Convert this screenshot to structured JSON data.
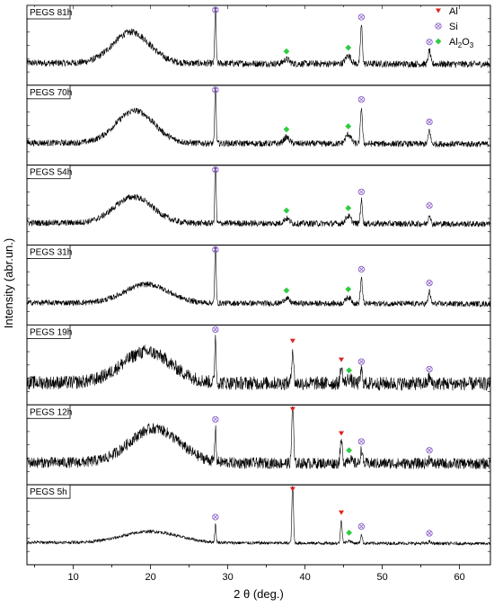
{
  "chart_data": {
    "type": "line",
    "xlabel": "2 θ (deg.)",
    "ylabel": "Intensity (abr.un.)",
    "xlim": [
      4,
      64
    ],
    "x_ticks": [
      10,
      20,
      30,
      40,
      50,
      60
    ],
    "grid": false,
    "legend_position": "top-right",
    "legend": [
      {
        "name": "Al",
        "symbol": "triangle-down",
        "color": "#e02020"
      },
      {
        "name": "Si",
        "symbol": "circle-x",
        "color": "#8a5ec9"
      },
      {
        "name": "Al",
        "subscript_a": "2",
        "name_b": "O",
        "subscript_b": "3",
        "symbol": "diamond",
        "color": "#2ecc40"
      }
    ],
    "series": [
      {
        "name": "PEGS 81h",
        "noise": 0.11,
        "hump": {
          "center": 17.5,
          "width": 3.4,
          "height": 0.5
        },
        "peaks": [
          {
            "x": 28.4,
            "h": 1.0,
            "w": 0.12
          },
          {
            "x": 37.6,
            "h": 0.07,
            "w": 0.5
          },
          {
            "x": 45.6,
            "h": 0.13,
            "w": 0.5
          },
          {
            "x": 47.3,
            "h": 0.62,
            "w": 0.18
          },
          {
            "x": 56.1,
            "h": 0.22,
            "w": 0.2
          }
        ],
        "markers": [
          {
            "type": "Si",
            "x": 28.4
          },
          {
            "type": "Al2O3",
            "x": 37.6
          },
          {
            "type": "Al2O3",
            "x": 45.6
          },
          {
            "type": "Si",
            "x": 47.3
          },
          {
            "type": "Si",
            "x": 56.1
          }
        ]
      },
      {
        "name": "PEGS 70h",
        "noise": 0.1,
        "hump": {
          "center": 18.0,
          "width": 3.5,
          "height": 0.52
        },
        "peaks": [
          {
            "x": 28.4,
            "h": 1.0,
            "w": 0.12
          },
          {
            "x": 37.6,
            "h": 0.1,
            "w": 0.5
          },
          {
            "x": 45.6,
            "h": 0.15,
            "w": 0.5
          },
          {
            "x": 47.3,
            "h": 0.58,
            "w": 0.18
          },
          {
            "x": 56.1,
            "h": 0.22,
            "w": 0.2
          }
        ],
        "markers": [
          {
            "type": "Si",
            "x": 28.4
          },
          {
            "type": "Al2O3",
            "x": 37.6
          },
          {
            "type": "Al2O3",
            "x": 45.6
          },
          {
            "type": "Si",
            "x": 47.3
          },
          {
            "type": "Si",
            "x": 56.1
          }
        ]
      },
      {
        "name": "PEGS 54h",
        "noise": 0.1,
        "hump": {
          "center": 17.8,
          "width": 3.5,
          "height": 0.42
        },
        "peaks": [
          {
            "x": 28.4,
            "h": 1.0,
            "w": 0.12
          },
          {
            "x": 37.6,
            "h": 0.08,
            "w": 0.5
          },
          {
            "x": 45.6,
            "h": 0.12,
            "w": 0.5
          },
          {
            "x": 47.3,
            "h": 0.38,
            "w": 0.18
          },
          {
            "x": 56.1,
            "h": 0.16,
            "w": 0.2
          }
        ],
        "markers": [
          {
            "type": "Si",
            "x": 28.4
          },
          {
            "type": "Al2O3",
            "x": 37.6
          },
          {
            "type": "Al2O3",
            "x": 45.6
          },
          {
            "type": "Si",
            "x": 47.3
          },
          {
            "type": "Si",
            "x": 56.1
          }
        ]
      },
      {
        "name": "PEGS 31h",
        "noise": 0.09,
        "hump": {
          "center": 19.5,
          "width": 4.0,
          "height": 0.3
        },
        "peaks": [
          {
            "x": 28.4,
            "h": 1.0,
            "w": 0.12
          },
          {
            "x": 37.6,
            "h": 0.08,
            "w": 0.5
          },
          {
            "x": 45.6,
            "h": 0.1,
            "w": 0.5
          },
          {
            "x": 47.3,
            "h": 0.42,
            "w": 0.18
          },
          {
            "x": 56.1,
            "h": 0.2,
            "w": 0.2
          }
        ],
        "markers": [
          {
            "type": "Si",
            "x": 28.4
          },
          {
            "type": "Al2O3",
            "x": 37.6
          },
          {
            "type": "Al2O3",
            "x": 45.6
          },
          {
            "type": "Si",
            "x": 47.3
          },
          {
            "type": "Si",
            "x": 56.1
          }
        ]
      },
      {
        "name": "PEGS 19h",
        "noise": 0.22,
        "hump": {
          "center": 19.5,
          "width": 4.5,
          "height": 0.5
        },
        "peaks": [
          {
            "x": 28.4,
            "h": 0.78,
            "w": 0.12
          },
          {
            "x": 38.4,
            "h": 0.55,
            "w": 0.18
          },
          {
            "x": 44.7,
            "h": 0.25,
            "w": 0.2
          },
          {
            "x": 45.7,
            "h": 0.08,
            "w": 0.4
          },
          {
            "x": 47.3,
            "h": 0.22,
            "w": 0.18
          },
          {
            "x": 56.1,
            "h": 0.1,
            "w": 0.2
          }
        ],
        "markers": [
          {
            "type": "Si",
            "x": 28.4
          },
          {
            "type": "Al",
            "x": 38.4
          },
          {
            "type": "Al",
            "x": 44.7
          },
          {
            "type": "Al2O3",
            "x": 45.7
          },
          {
            "type": "Si",
            "x": 47.3
          },
          {
            "type": "Si",
            "x": 56.1
          }
        ]
      },
      {
        "name": "PEGS 12h",
        "noise": 0.18,
        "hump": {
          "center": 20.5,
          "width": 4.5,
          "height": 0.55
        },
        "peaks": [
          {
            "x": 28.4,
            "h": 0.55,
            "w": 0.12
          },
          {
            "x": 38.4,
            "h": 1.0,
            "w": 0.16
          },
          {
            "x": 44.7,
            "h": 0.35,
            "w": 0.2
          },
          {
            "x": 45.7,
            "h": 0.08,
            "w": 0.4
          },
          {
            "x": 47.3,
            "h": 0.22,
            "w": 0.18
          },
          {
            "x": 56.1,
            "h": 0.08,
            "w": 0.2
          }
        ],
        "markers": [
          {
            "type": "Si",
            "x": 28.4
          },
          {
            "type": "Al",
            "x": 38.4
          },
          {
            "type": "Al",
            "x": 44.7
          },
          {
            "type": "Al2O3",
            "x": 45.7
          },
          {
            "type": "Si",
            "x": 47.3
          },
          {
            "type": "Si",
            "x": 56.1
          }
        ]
      },
      {
        "name": "PEGS 5h",
        "noise": 0.05,
        "hump": {
          "center": 20.0,
          "width": 5.0,
          "height": 0.18
        },
        "peaks": [
          {
            "x": 28.4,
            "h": 0.28,
            "w": 0.12
          },
          {
            "x": 38.4,
            "h": 1.0,
            "w": 0.14
          },
          {
            "x": 44.7,
            "h": 0.36,
            "w": 0.16
          },
          {
            "x": 45.7,
            "h": 0.04,
            "w": 0.4
          },
          {
            "x": 47.3,
            "h": 0.14,
            "w": 0.16
          },
          {
            "x": 56.1,
            "h": 0.03,
            "w": 0.2
          }
        ],
        "markers": [
          {
            "type": "Si",
            "x": 28.4
          },
          {
            "type": "Al",
            "x": 38.4
          },
          {
            "type": "Al",
            "x": 44.7
          },
          {
            "type": "Al2O3",
            "x": 45.7
          },
          {
            "type": "Si",
            "x": 47.3
          },
          {
            "type": "Si",
            "x": 56.1
          }
        ]
      }
    ]
  }
}
